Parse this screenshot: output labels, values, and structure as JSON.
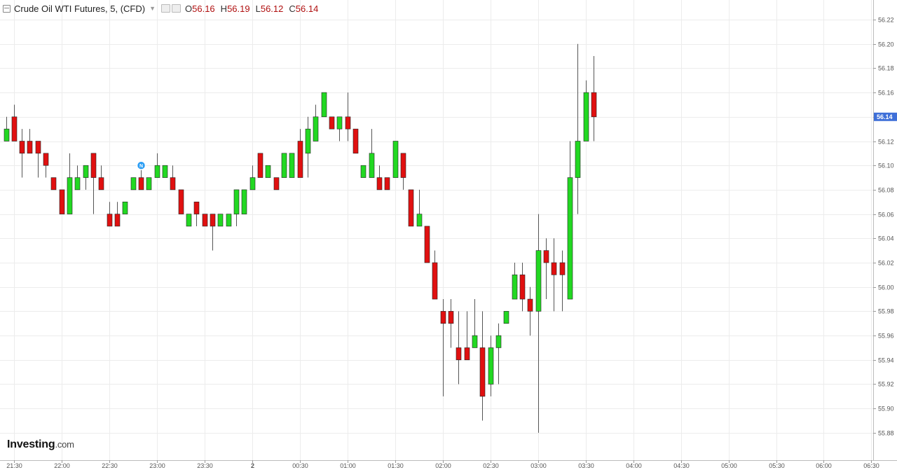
{
  "header": {
    "title": "Crude Oil WTI Futures, 5, (CFD)",
    "ohlc": [
      {
        "k": "O",
        "v": "56.16"
      },
      {
        "k": "H",
        "v": "56.19"
      },
      {
        "k": "L",
        "v": "56.12"
      },
      {
        "k": "C",
        "v": "56.14"
      }
    ]
  },
  "logo": {
    "main": "Investing",
    "suffix": ".com"
  },
  "colors": {
    "up": "#22d822",
    "down": "#e01010",
    "grid": "#ececec",
    "current_price": "#3e6fd8",
    "event_marker": "#2a9df4"
  },
  "chart_data": {
    "type": "candlestick",
    "current_price": 56.14,
    "event_marker": {
      "candle": 17,
      "label": "N"
    },
    "y_ticks": [
      "56.22",
      "56.20",
      "56.18",
      "56.16",
      "56.14",
      "56.12",
      "56.10",
      "56.08",
      "56.06",
      "56.04",
      "56.02",
      "56.00",
      "55.98",
      "55.96",
      "55.94",
      "55.92",
      "55.90",
      "55.88"
    ],
    "x_ticks": [
      "21:30",
      "22:00",
      "22:30",
      "23:00",
      "23:30",
      "2",
      "00:30",
      "01:00",
      "01:30",
      "02:00",
      "02:30",
      "03:00",
      "03:30",
      "04:00",
      "04:30",
      "05:00",
      "05:30",
      "06:00",
      "06:30"
    ],
    "candles": [
      {
        "t": "21:25",
        "o": 56.12,
        "h": 56.14,
        "l": 56.12,
        "c": 56.13
      },
      {
        "t": "21:30",
        "o": 56.14,
        "h": 56.15,
        "l": 56.12,
        "c": 56.12
      },
      {
        "t": "21:35",
        "o": 56.12,
        "h": 56.13,
        "l": 56.09,
        "c": 56.11
      },
      {
        "t": "21:40",
        "o": 56.12,
        "h": 56.13,
        "l": 56.11,
        "c": 56.11
      },
      {
        "t": "21:45",
        "o": 56.12,
        "h": 56.12,
        "l": 56.09,
        "c": 56.11
      },
      {
        "t": "21:50",
        "o": 56.11,
        "h": 56.11,
        "l": 56.09,
        "c": 56.1
      },
      {
        "t": "21:55",
        "o": 56.09,
        "h": 56.09,
        "l": 56.08,
        "c": 56.08
      },
      {
        "t": "22:00",
        "o": 56.08,
        "h": 56.08,
        "l": 56.06,
        "c": 56.06
      },
      {
        "t": "22:05",
        "o": 56.06,
        "h": 56.11,
        "l": 56.06,
        "c": 56.09
      },
      {
        "t": "22:10",
        "o": 56.08,
        "h": 56.1,
        "l": 56.08,
        "c": 56.09
      },
      {
        "t": "22:15",
        "o": 56.09,
        "h": 56.1,
        "l": 56.08,
        "c": 56.1
      },
      {
        "t": "22:20",
        "o": 56.11,
        "h": 56.11,
        "l": 56.06,
        "c": 56.09
      },
      {
        "t": "22:25",
        "o": 56.09,
        "h": 56.1,
        "l": 56.08,
        "c": 56.08
      },
      {
        "t": "22:30",
        "o": 56.06,
        "h": 56.07,
        "l": 56.05,
        "c": 56.05
      },
      {
        "t": "22:35",
        "o": 56.06,
        "h": 56.07,
        "l": 56.05,
        "c": 56.05
      },
      {
        "t": "22:40",
        "o": 56.06,
        "h": 56.07,
        "l": 56.06,
        "c": 56.07
      },
      {
        "t": "22:45",
        "o": 56.08,
        "h": 56.09,
        "l": 56.08,
        "c": 56.09
      },
      {
        "t": "22:50",
        "o": 56.09,
        "h": 56.1,
        "l": 56.08,
        "c": 56.08
      },
      {
        "t": "22:55",
        "o": 56.08,
        "h": 56.09,
        "l": 56.08,
        "c": 56.09
      },
      {
        "t": "23:00",
        "o": 56.09,
        "h": 56.11,
        "l": 56.09,
        "c": 56.1
      },
      {
        "t": "23:05",
        "o": 56.09,
        "h": 56.1,
        "l": 56.09,
        "c": 56.1
      },
      {
        "t": "23:10",
        "o": 56.09,
        "h": 56.1,
        "l": 56.08,
        "c": 56.08
      },
      {
        "t": "23:15",
        "o": 56.08,
        "h": 56.08,
        "l": 56.06,
        "c": 56.06
      },
      {
        "t": "23:20",
        "o": 56.05,
        "h": 56.06,
        "l": 56.05,
        "c": 56.06
      },
      {
        "t": "23:25",
        "o": 56.07,
        "h": 56.07,
        "l": 56.05,
        "c": 56.06
      },
      {
        "t": "23:30",
        "o": 56.06,
        "h": 56.06,
        "l": 56.05,
        "c": 56.05
      },
      {
        "t": "23:35",
        "o": 56.06,
        "h": 56.06,
        "l": 56.03,
        "c": 56.05
      },
      {
        "t": "23:40",
        "o": 56.05,
        "h": 56.06,
        "l": 56.05,
        "c": 56.06
      },
      {
        "t": "23:45",
        "o": 56.05,
        "h": 56.06,
        "l": 56.05,
        "c": 56.06
      },
      {
        "t": "23:50",
        "o": 56.06,
        "h": 56.08,
        "l": 56.05,
        "c": 56.08
      },
      {
        "t": "23:55",
        "o": 56.06,
        "h": 56.08,
        "l": 56.06,
        "c": 56.08
      },
      {
        "t": "00:00",
        "o": 56.08,
        "h": 56.1,
        "l": 56.08,
        "c": 56.09
      },
      {
        "t": "00:05",
        "o": 56.11,
        "h": 56.11,
        "l": 56.09,
        "c": 56.09
      },
      {
        "t": "00:10",
        "o": 56.09,
        "h": 56.1,
        "l": 56.09,
        "c": 56.1
      },
      {
        "t": "00:15",
        "o": 56.09,
        "h": 56.09,
        "l": 56.08,
        "c": 56.08
      },
      {
        "t": "00:20",
        "o": 56.09,
        "h": 56.11,
        "l": 56.09,
        "c": 56.11
      },
      {
        "t": "00:25",
        "o": 56.09,
        "h": 56.11,
        "l": 56.09,
        "c": 56.11
      },
      {
        "t": "00:30",
        "o": 56.12,
        "h": 56.13,
        "l": 56.09,
        "c": 56.09
      },
      {
        "t": "00:35",
        "o": 56.11,
        "h": 56.14,
        "l": 56.09,
        "c": 56.13
      },
      {
        "t": "00:40",
        "o": 56.12,
        "h": 56.15,
        "l": 56.12,
        "c": 56.14
      },
      {
        "t": "00:45",
        "o": 56.14,
        "h": 56.16,
        "l": 56.14,
        "c": 56.16
      },
      {
        "t": "00:50",
        "o": 56.14,
        "h": 56.14,
        "l": 56.13,
        "c": 56.13
      },
      {
        "t": "00:55",
        "o": 56.13,
        "h": 56.14,
        "l": 56.12,
        "c": 56.14
      },
      {
        "t": "01:00",
        "o": 56.14,
        "h": 56.16,
        "l": 56.12,
        "c": 56.13
      },
      {
        "t": "01:05",
        "o": 56.13,
        "h": 56.13,
        "l": 56.11,
        "c": 56.11
      },
      {
        "t": "01:10",
        "o": 56.09,
        "h": 56.1,
        "l": 56.09,
        "c": 56.1
      },
      {
        "t": "01:15",
        "o": 56.09,
        "h": 56.13,
        "l": 56.09,
        "c": 56.11
      },
      {
        "t": "01:20",
        "o": 56.09,
        "h": 56.1,
        "l": 56.08,
        "c": 56.08
      },
      {
        "t": "01:25",
        "o": 56.09,
        "h": 56.09,
        "l": 56.08,
        "c": 56.08
      },
      {
        "t": "01:30",
        "o": 56.09,
        "h": 56.12,
        "l": 56.09,
        "c": 56.12
      },
      {
        "t": "01:35",
        "o": 56.11,
        "h": 56.11,
        "l": 56.08,
        "c": 56.09
      },
      {
        "t": "01:40",
        "o": 56.08,
        "h": 56.08,
        "l": 56.05,
        "c": 56.05
      },
      {
        "t": "01:45",
        "o": 56.05,
        "h": 56.08,
        "l": 56.05,
        "c": 56.06
      },
      {
        "t": "01:50",
        "o": 56.05,
        "h": 56.05,
        "l": 56.02,
        "c": 56.02
      },
      {
        "t": "01:55",
        "o": 56.02,
        "h": 56.03,
        "l": 55.99,
        "c": 55.99
      },
      {
        "t": "02:00",
        "o": 55.98,
        "h": 55.99,
        "l": 55.91,
        "c": 55.97
      },
      {
        "t": "02:05",
        "o": 55.98,
        "h": 55.99,
        "l": 55.95,
        "c": 55.97
      },
      {
        "t": "02:10",
        "o": 55.95,
        "h": 55.98,
        "l": 55.92,
        "c": 55.94
      },
      {
        "t": "02:15",
        "o": 55.95,
        "h": 55.98,
        "l": 55.94,
        "c": 55.94
      },
      {
        "t": "02:20",
        "o": 55.95,
        "h": 55.99,
        "l": 55.95,
        "c": 55.96
      },
      {
        "t": "02:25",
        "o": 55.95,
        "h": 55.98,
        "l": 55.89,
        "c": 55.91
      },
      {
        "t": "02:30",
        "o": 55.92,
        "h": 55.96,
        "l": 55.91,
        "c": 55.95
      },
      {
        "t": "02:35",
        "o": 55.95,
        "h": 55.97,
        "l": 55.92,
        "c": 55.96
      },
      {
        "t": "02:40",
        "o": 55.97,
        "h": 55.98,
        "l": 55.97,
        "c": 55.98
      },
      {
        "t": "02:45",
        "o": 55.99,
        "h": 56.02,
        "l": 55.99,
        "c": 56.01
      },
      {
        "t": "02:50",
        "o": 56.01,
        "h": 56.02,
        "l": 55.98,
        "c": 55.99
      },
      {
        "t": "02:55",
        "o": 55.99,
        "h": 56.0,
        "l": 55.96,
        "c": 55.98
      },
      {
        "t": "03:00",
        "o": 55.98,
        "h": 56.06,
        "l": 55.88,
        "c": 56.03
      },
      {
        "t": "03:05",
        "o": 56.03,
        "h": 56.04,
        "l": 55.99,
        "c": 56.02
      },
      {
        "t": "03:10",
        "o": 56.02,
        "h": 56.04,
        "l": 55.98,
        "c": 56.01
      },
      {
        "t": "03:15",
        "o": 56.02,
        "h": 56.03,
        "l": 55.98,
        "c": 56.01
      },
      {
        "t": "03:20",
        "o": 55.99,
        "h": 56.12,
        "l": 55.99,
        "c": 56.09
      },
      {
        "t": "03:25",
        "o": 56.09,
        "h": 56.2,
        "l": 56.06,
        "c": 56.12
      },
      {
        "t": "03:30",
        "o": 56.12,
        "h": 56.17,
        "l": 56.12,
        "c": 56.16
      },
      {
        "t": "03:35",
        "o": 56.16,
        "h": 56.19,
        "l": 56.12,
        "c": 56.14
      }
    ]
  }
}
